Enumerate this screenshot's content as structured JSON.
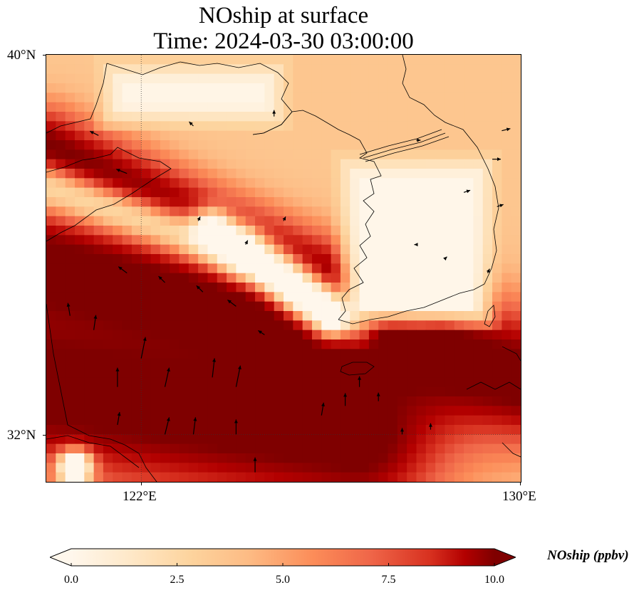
{
  "title": {
    "line1": "NOship at surface",
    "line2": "Time: 2024-03-30 03:00:00"
  },
  "map": {
    "projection": "PlateCarree",
    "extent": {
      "lon_min": 120,
      "lon_max": 130,
      "lat_min": 31,
      "lat_max": 40
    },
    "gridlines": {
      "lons": [
        122
      ],
      "lats": [
        32
      ],
      "style": "dotted"
    },
    "colormap": "OrRd"
  },
  "axes": {
    "x_ticks": [
      {
        "value": 122,
        "label": "122°E"
      },
      {
        "value": 130,
        "label": "130°E"
      }
    ],
    "y_ticks": [
      {
        "value": 40,
        "label": "40°N"
      },
      {
        "value": 32,
        "label": "32°N"
      }
    ]
  },
  "colorbar": {
    "label": "NOship (ppbv)",
    "min": 0.0,
    "max": 10.0,
    "ticks": [
      "0.0",
      "2.5",
      "5.0",
      "7.5",
      "10.0"
    ],
    "extend": "both"
  },
  "colors": {
    "low": "#fff7ec",
    "mid": "#fc8d59",
    "high": "#7f0000"
  },
  "field": {
    "description_units": "ppbv",
    "features": [
      {
        "kind": "band",
        "lon1": 120,
        "lat1": 38.0,
        "lon2": 126.8,
        "lat2": 34.6,
        "width": 1.0,
        "value": 10.5
      },
      {
        "kind": "band",
        "lon1": 120,
        "lat1": 35.5,
        "lon2": 130.0,
        "lat2": 33.2,
        "width": 1.6,
        "value": 11.0
      },
      {
        "kind": "band",
        "lon1": 120,
        "lat1": 33.0,
        "lon2": 126.5,
        "lat2": 32.0,
        "width": 2.2,
        "value": 11.0
      },
      {
        "kind": "band",
        "lon1": 124.3,
        "lat1": 36.1,
        "lon2": 126.6,
        "lat2": 34.2,
        "width": 0.45,
        "value": 7.0
      },
      {
        "kind": "band",
        "lon1": 120,
        "lat1": 37.2,
        "lon2": 124.0,
        "lat2": 35.8,
        "width": 0.55,
        "value": 2.5
      },
      {
        "kind": "band",
        "lon1": 123.5,
        "lat1": 36.3,
        "lon2": 126.0,
        "lat2": 34.5,
        "width": 0.5,
        "value": -3.0
      },
      {
        "kind": "blob",
        "lon": 128.3,
        "lat": 34.05,
        "r": 0.45,
        "value": 11.0
      },
      {
        "kind": "blob",
        "lon": 120.6,
        "lat": 31.3,
        "r": 0.4,
        "value": -4.0
      }
    ],
    "land_boxes": [
      {
        "lon1": 121.0,
        "lat1": 38.35,
        "lon2": 125.2,
        "lat2": 40.0,
        "value": 0.2
      },
      {
        "lon1": 126.0,
        "lat1": 34.1,
        "lon2": 129.6,
        "lat2": 38.0,
        "value": 0.1
      }
    ]
  },
  "wind_vectors": [
    {
      "lon": 120.5,
      "lat": 34.5,
      "u": -0.1,
      "v": 0.6
    },
    {
      "lon": 121.0,
      "lat": 34.2,
      "u": 0.1,
      "v": 0.7
    },
    {
      "lon": 121.5,
      "lat": 33.0,
      "u": 0.0,
      "v": 0.9
    },
    {
      "lon": 122.0,
      "lat": 33.6,
      "u": 0.2,
      "v": 1.0
    },
    {
      "lon": 122.5,
      "lat": 33.0,
      "u": 0.2,
      "v": 0.9
    },
    {
      "lon": 121.5,
      "lat": 32.2,
      "u": 0.1,
      "v": 0.6
    },
    {
      "lon": 122.5,
      "lat": 32.0,
      "u": 0.2,
      "v": 0.8
    },
    {
      "lon": 123.1,
      "lat": 32.0,
      "u": 0.1,
      "v": 0.8
    },
    {
      "lon": 123.5,
      "lat": 33.2,
      "u": 0.1,
      "v": 0.9
    },
    {
      "lon": 124.0,
      "lat": 33.0,
      "u": 0.2,
      "v": 1.0
    },
    {
      "lon": 124.0,
      "lat": 32.0,
      "u": 0.0,
      "v": 0.7
    },
    {
      "lon": 124.4,
      "lat": 31.2,
      "u": 0.0,
      "v": 0.7
    },
    {
      "lon": 125.8,
      "lat": 32.4,
      "u": 0.1,
      "v": 0.6
    },
    {
      "lon": 126.3,
      "lat": 32.6,
      "u": 0.0,
      "v": 0.6
    },
    {
      "lon": 127.0,
      "lat": 32.7,
      "u": 0.0,
      "v": 0.4
    },
    {
      "lon": 126.6,
      "lat": 33.0,
      "u": 0.0,
      "v": 0.5
    },
    {
      "lon": 127.5,
      "lat": 32.0,
      "u": 0.0,
      "v": 0.3
    },
    {
      "lon": 128.1,
      "lat": 32.1,
      "u": 0.0,
      "v": 0.3
    },
    {
      "lon": 121.7,
      "lat": 35.4,
      "u": -0.4,
      "v": 0.3
    },
    {
      "lon": 122.5,
      "lat": 35.2,
      "u": -0.3,
      "v": 0.3
    },
    {
      "lon": 123.3,
      "lat": 35.0,
      "u": -0.3,
      "v": 0.3
    },
    {
      "lon": 124.0,
      "lat": 34.7,
      "u": -0.4,
      "v": 0.3
    },
    {
      "lon": 124.6,
      "lat": 34.1,
      "u": -0.3,
      "v": 0.2
    },
    {
      "lon": 121.7,
      "lat": 37.5,
      "u": -0.5,
      "v": 0.2
    },
    {
      "lon": 121.1,
      "lat": 38.3,
      "u": -0.4,
      "v": 0.2
    },
    {
      "lon": 123.1,
      "lat": 38.5,
      "u": -0.2,
      "v": 0.2
    },
    {
      "lon": 124.8,
      "lat": 38.7,
      "u": 0.0,
      "v": 0.3
    },
    {
      "lon": 123.2,
      "lat": 36.5,
      "u": 0.1,
      "v": 0.2
    },
    {
      "lon": 124.2,
      "lat": 36.0,
      "u": 0.1,
      "v": 0.2
    },
    {
      "lon": 125.0,
      "lat": 36.5,
      "u": 0.1,
      "v": 0.2
    },
    {
      "lon": 127.8,
      "lat": 38.2,
      "u": 0.2,
      "v": 0.0
    },
    {
      "lon": 128.8,
      "lat": 37.1,
      "u": 0.3,
      "v": 0.1
    },
    {
      "lon": 129.6,
      "lat": 38.4,
      "u": 0.4,
      "v": 0.1
    },
    {
      "lon": 129.4,
      "lat": 37.8,
      "u": 0.4,
      "v": 0.0
    },
    {
      "lon": 127.8,
      "lat": 36.0,
      "u": -0.1,
      "v": 0.0
    },
    {
      "lon": 128.4,
      "lat": 35.7,
      "u": 0.1,
      "v": 0.1
    },
    {
      "lon": 129.3,
      "lat": 35.4,
      "u": 0.1,
      "v": 0.2
    },
    {
      "lon": 129.5,
      "lat": 36.8,
      "u": 0.3,
      "v": 0.1
    }
  ]
}
